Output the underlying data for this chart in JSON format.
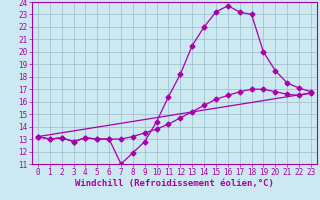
{
  "title": "",
  "xlabel": "Windchill (Refroidissement éolien,°C)",
  "ylabel": "",
  "xlim": [
    -0.5,
    23.5
  ],
  "ylim": [
    11,
    24
  ],
  "xticks": [
    0,
    1,
    2,
    3,
    4,
    5,
    6,
    7,
    8,
    9,
    10,
    11,
    12,
    13,
    14,
    15,
    16,
    17,
    18,
    19,
    20,
    21,
    22,
    23
  ],
  "yticks": [
    11,
    12,
    13,
    14,
    15,
    16,
    17,
    18,
    19,
    20,
    21,
    22,
    23,
    24
  ],
  "bg_color": "#cce8f0",
  "line_color": "#aa00aa",
  "grid_color": "#99bbcc",
  "line1_x": [
    0,
    1,
    2,
    3,
    4,
    5,
    6,
    7,
    8,
    9,
    10,
    11,
    12,
    13,
    14,
    15,
    16,
    17,
    18,
    19,
    20,
    21,
    22,
    23
  ],
  "line1_y": [
    13.2,
    13.0,
    13.1,
    12.8,
    13.1,
    13.0,
    13.0,
    11.0,
    11.9,
    12.8,
    14.4,
    16.4,
    18.2,
    20.5,
    22.0,
    23.2,
    23.7,
    23.2,
    23.0,
    20.0,
    18.5,
    17.5,
    17.1,
    16.8
  ],
  "line2_x": [
    0,
    1,
    2,
    3,
    4,
    5,
    6,
    7,
    8,
    9,
    10,
    11,
    12,
    13,
    14,
    15,
    16,
    17,
    18,
    19,
    20,
    21,
    22,
    23
  ],
  "line2_y": [
    13.2,
    13.0,
    13.1,
    12.8,
    13.1,
    13.0,
    13.0,
    13.0,
    13.2,
    13.5,
    13.8,
    14.2,
    14.7,
    15.2,
    15.7,
    16.2,
    16.5,
    16.8,
    17.0,
    17.0,
    16.8,
    16.6,
    16.5,
    16.7
  ],
  "line3_x": [
    0,
    23
  ],
  "line3_y": [
    13.2,
    16.7
  ],
  "marker": "D",
  "marker_size": 2.5,
  "line_width": 0.9,
  "tick_fontsize": 5.5,
  "xlabel_fontsize": 6.5,
  "tick_color": "#aa00aa",
  "axis_color": "#aa00aa",
  "spine_color": "#aa00aa"
}
